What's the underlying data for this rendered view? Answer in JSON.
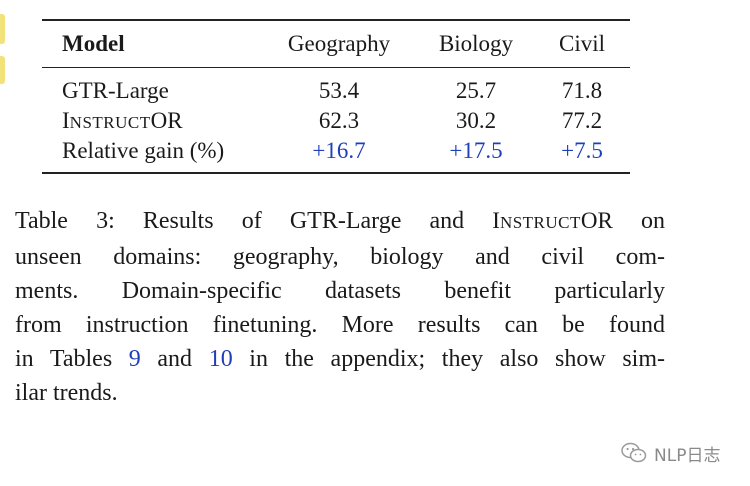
{
  "table": {
    "headers": [
      "Model",
      "Geography",
      "Biology",
      "Civil"
    ],
    "rows": [
      {
        "model": "GTR-Large",
        "values": [
          "53.4",
          "25.7",
          "71.8"
        ]
      },
      {
        "model_parts": [
          "I",
          "NSTRUCT",
          "OR"
        ],
        "values": [
          "62.3",
          "30.2",
          "77.2"
        ]
      },
      {
        "model": "Relative gain (%)",
        "values": [
          "+16.7",
          "+17.5",
          "+7.5"
        ]
      }
    ]
  },
  "caption": {
    "line1": [
      "Table 3: Results of GTR-Large and ",
      "I",
      "NSTRUCT",
      "OR",
      " on"
    ],
    "line2": "unseen domains:  geography, biology and civil com-",
    "line3": "ments.  Domain-specific datasets benefit particularly",
    "line4": "from instruction finetuning. More results can be found",
    "line5": [
      "in Tables ",
      "9",
      " and ",
      "10",
      " in the appendix; they also show sim-"
    ],
    "line6": "ilar trends."
  },
  "watermark": {
    "text": "NLP日志",
    "icon": "wechat-icon"
  }
}
